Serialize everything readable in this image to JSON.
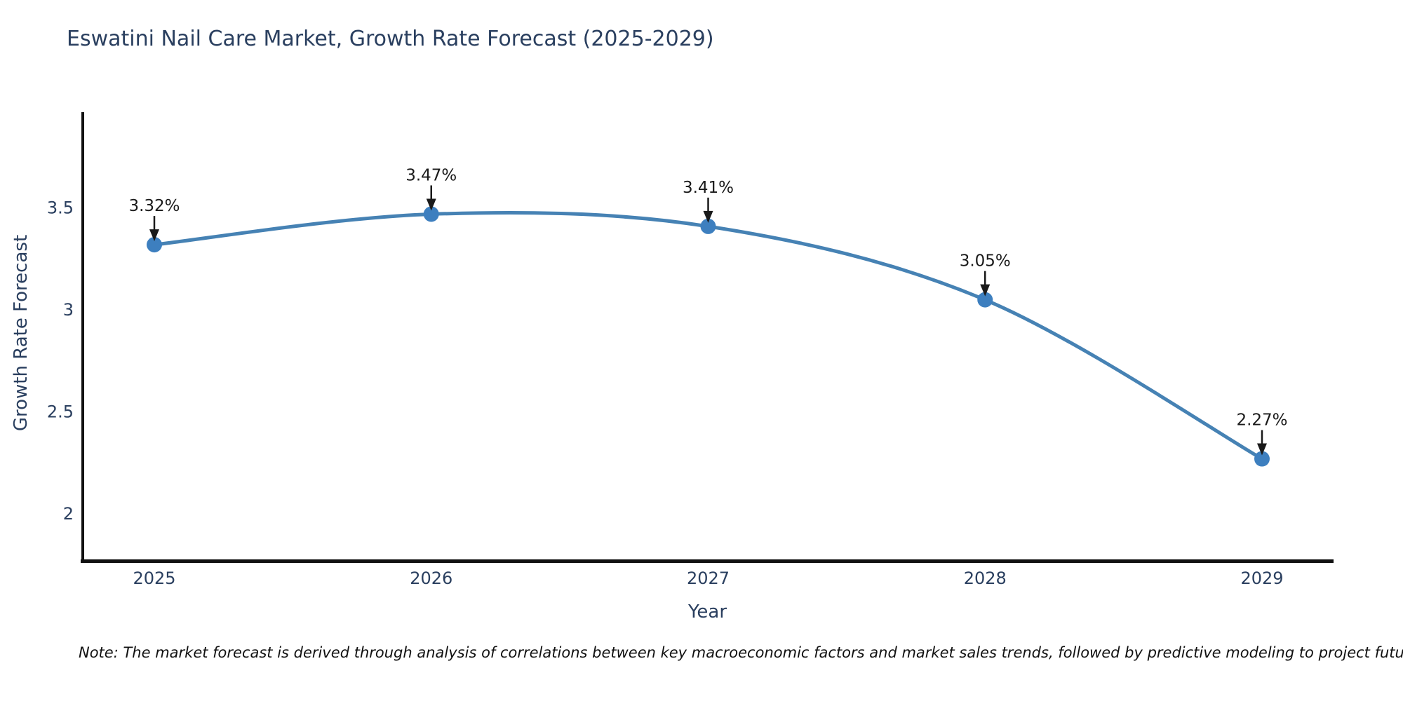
{
  "title": "Eswatini Nail Care Market, Growth Rate Forecast (2025-2029)",
  "note": "Note: The market forecast is derived through analysis of correlations between key macroeconomic factors and market sales trends, followed by predictive modeling to project future sales",
  "chart_data": {
    "type": "line",
    "title": "Eswatini Nail Care Market, Growth Rate Forecast (2025-2029)",
    "xlabel": "Year",
    "ylabel": "Growth Rate Forecast",
    "x": [
      2025,
      2026,
      2027,
      2028,
      2029
    ],
    "values": [
      3.32,
      3.47,
      3.41,
      3.05,
      2.27
    ],
    "point_labels": [
      "3.32%",
      "3.47%",
      "3.41%",
      "3.05%",
      "2.27%"
    ],
    "x_tick_labels": [
      "2025",
      "2026",
      "2027",
      "2028",
      "2029"
    ],
    "y_tick_values": [
      3.5,
      3,
      2.5,
      2
    ],
    "y_tick_labels": [
      "3.5",
      "3",
      "2.5",
      "2"
    ],
    "ylim": [
      1.77,
      3.97
    ],
    "grid": false,
    "legend": null,
    "line_color": "#4682b4",
    "marker_color": "#3d7fbf",
    "annotation_color": "#1a1a1a",
    "axis_color": "#111111",
    "text_color": "#2a3f5f"
  }
}
